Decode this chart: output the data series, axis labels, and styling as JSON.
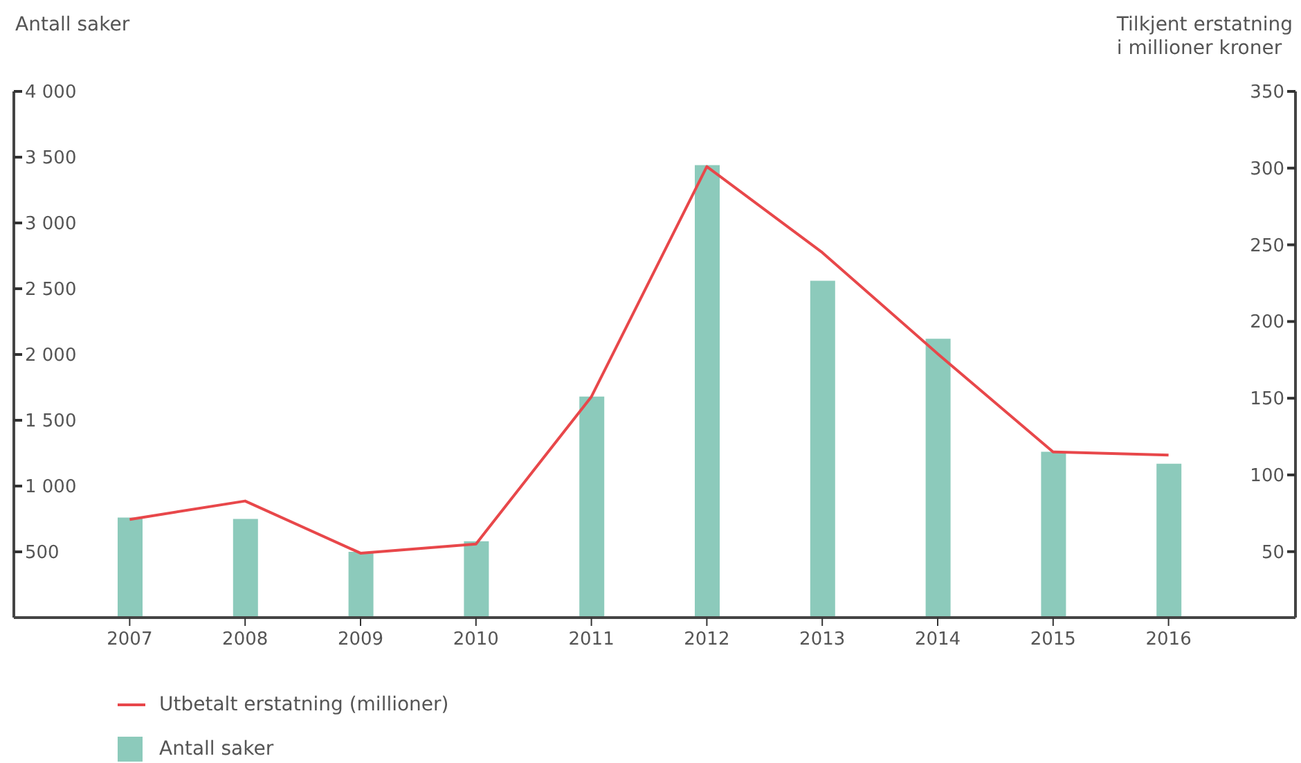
{
  "chart_data": {
    "type": "bar",
    "ylabel": "Antall saker",
    "y2label": "Tilkjent erstatning\ni millioner kroner",
    "categories": [
      "2007",
      "2008",
      "2009",
      "2010",
      "2011",
      "2012",
      "2013",
      "2014",
      "2015",
      "2016"
    ],
    "series": [
      {
        "name": "Utbetalt erstatning (millioner)",
        "type": "line",
        "axis": "y2",
        "color": "#e8474a",
        "values": [
          71,
          83,
          49,
          55,
          151,
          301,
          245,
          179,
          115,
          113
        ]
      },
      {
        "name": "Antall saker",
        "color": "#8ccabb",
        "values": [
          760,
          750,
          500,
          580,
          1680,
          3440,
          2560,
          2120,
          1260,
          1170
        ]
      }
    ],
    "ylim": [
      0,
      4000
    ],
    "yticks": [
      500,
      {
        "value": 1000,
        "label": "1 000"
      },
      {
        "value": 1500,
        "label": "1 500"
      },
      {
        "value": 2000,
        "label": "2 000"
      },
      {
        "value": 2500,
        "label": "2 500"
      },
      {
        "value": 3000,
        "label": "3 000"
      },
      {
        "value": 3500,
        "label": "3 500"
      },
      {
        "value": 4000,
        "label": "4 000"
      }
    ],
    "y2lim": [
      7,
      350
    ],
    "y2ticks": [
      50,
      100,
      150,
      200,
      250,
      300,
      350
    ],
    "legend": "bottom"
  }
}
